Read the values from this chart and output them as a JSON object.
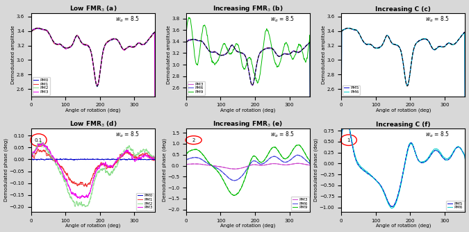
{
  "panel_titles": [
    "Low FMR$_3$ (a)",
    "Increasing FMR$_3$ (b)",
    "Increasing C (c)",
    "Low FMR$_3$ (d)",
    "Increasing FMR$_3$ (e)",
    "Increasing C (f)"
  ],
  "w_annotation": "$w_{\\alpha}$ = 8.5",
  "xlabel": "Angle of rotation (deg)",
  "ylabel_top": "Demodulated amplitude",
  "ylabel_bottom": "Demodulated phase (deg)",
  "legend_abc": [
    [
      "PM0",
      "PM1",
      "PM2",
      "PM3"
    ],
    [
      "PM3",
      "PM6",
      "PM9"
    ],
    [
      "PM5",
      "PM6"
    ]
  ],
  "legend_def": [
    [
      "PM0",
      "PM1",
      "PM2",
      "PM3"
    ],
    [
      "PM3",
      "PM6",
      "PM9"
    ],
    [
      "PM5",
      "PM6"
    ]
  ],
  "colors_a": [
    "#0000cc",
    "#ee3333",
    "#88dd88",
    "#ee00ee"
  ],
  "colors_b": [
    "#cc44cc",
    "#4444dd",
    "#00bb00"
  ],
  "colors_c": [
    "#0000cc",
    "#00cccc"
  ],
  "scale_ann": [
    "0.1",
    "2",
    "1"
  ],
  "bg_color": "#d8d8d8",
  "panel_bg": "#ffffff"
}
